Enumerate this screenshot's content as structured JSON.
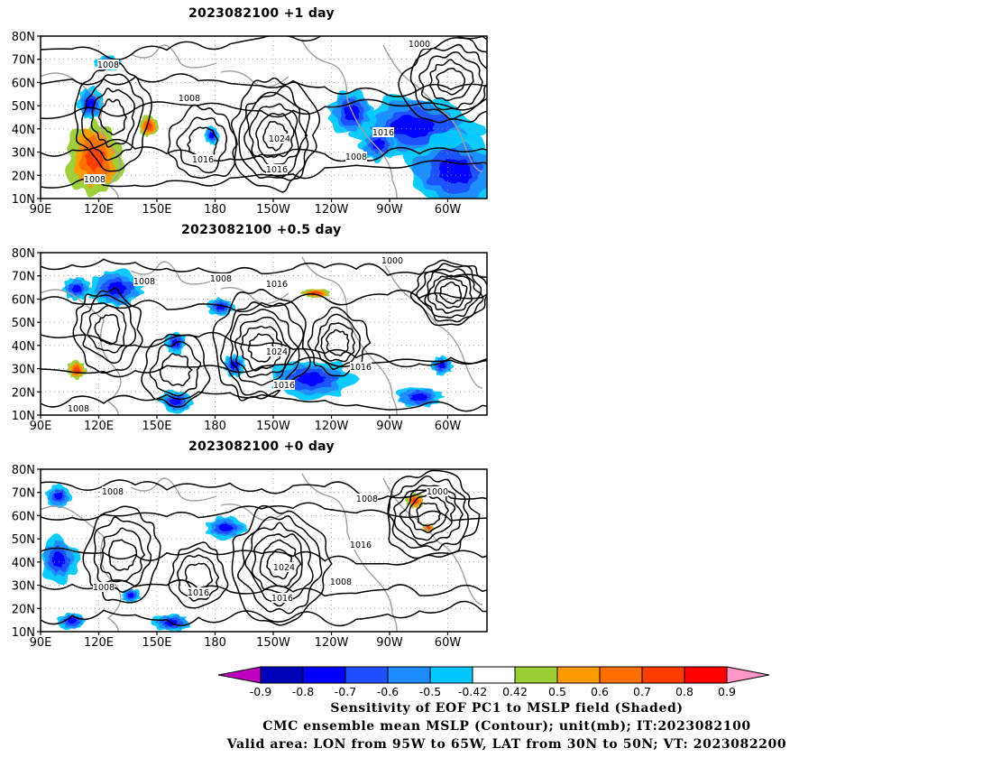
{
  "panels": [
    {
      "title": "2023082100 +1 day",
      "contour_labels": [
        "1000",
        "1008",
        "1008",
        "1008",
        "1024",
        "1016",
        "1016",
        "1016",
        "1008"
      ]
    },
    {
      "title": "2023082100 +0.5 day",
      "contour_labels": [
        "1000",
        "1008",
        "1008",
        "1016",
        "1024",
        "1016",
        "1016",
        "1008"
      ]
    },
    {
      "title": "2023082100 +0 day",
      "contour_labels": [
        "1008",
        "1008",
        "1000",
        "1016",
        "1024",
        "1008",
        "1016",
        "1016",
        "1008"
      ]
    }
  ],
  "axes": {
    "lat_labels": [
      "80N",
      "70N",
      "60N",
      "50N",
      "40N",
      "30N",
      "20N",
      "10N"
    ],
    "lon_labels": [
      "90E",
      "120E",
      "150E",
      "180",
      "150W",
      "120W",
      "90W",
      "60W"
    ]
  },
  "colorbar": {
    "colors": [
      "#c000c0",
      "#0000bb",
      "#0000ff",
      "#1e50ff",
      "#1e8cff",
      "#00c8ff",
      "#ffffff",
      "#9acd32",
      "#ff9b00",
      "#ff6e00",
      "#ff3c00",
      "#ff0000",
      "#ff96c8"
    ],
    "labels": [
      "-0.9",
      "-0.8",
      "-0.7",
      "-0.6",
      "-0.5",
      "-0.42",
      "0.42",
      "0.5",
      "0.6",
      "0.7",
      "0.8",
      "0.9"
    ]
  },
  "caption": {
    "line1": "Sensitivity of EOF PC1 to MSLP field (Shaded)",
    "line2": "CMC ensemble mean MSLP (Contour); unit(mb); IT:2023082100",
    "line3": "Valid area: LON from 95W to 65W, LAT from 30N to 50N; VT: 2023082200"
  }
}
